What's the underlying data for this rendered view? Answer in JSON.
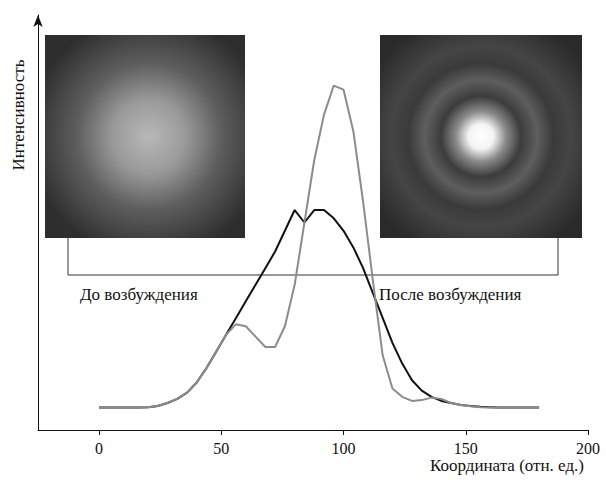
{
  "chart_data": {
    "type": "line",
    "xlabel": "Координата (отн. ед.)",
    "ylabel": "Интенсивность",
    "x": [
      0,
      4,
      8,
      12,
      16,
      20,
      24,
      28,
      32,
      36,
      40,
      44,
      48,
      52,
      56,
      60,
      64,
      68,
      72,
      76,
      80,
      84,
      88,
      92,
      96,
      100,
      104,
      108,
      112,
      116,
      120,
      124,
      128,
      132,
      136,
      140,
      144,
      148,
      152,
      156,
      160,
      164,
      168,
      172,
      176,
      180
    ],
    "series": [
      {
        "name": "До возбуждения",
        "color": "#111111",
        "line_style": "solid",
        "values": [
          5.4,
          5.4,
          5.4,
          5.4,
          5.4,
          5.5,
          5.8,
          6.5,
          7.5,
          9,
          11.5,
          15,
          19,
          23,
          27,
          31,
          35,
          39,
          43,
          48,
          53,
          50,
          53,
          53,
          51,
          48,
          44,
          39,
          33,
          27,
          21,
          16,
          12,
          9.5,
          8,
          7,
          6.5,
          6,
          5.8,
          5.6,
          5.5,
          5.4,
          5.4,
          5.4,
          5.4,
          5.4
        ]
      },
      {
        "name": "После возбуждения",
        "color": "#8c8c8c",
        "line_style": "solid",
        "values": [
          5.4,
          5.4,
          5.4,
          5.4,
          5.4,
          5.5,
          5.8,
          6.5,
          7.5,
          9,
          11.5,
          15,
          19,
          23,
          25.5,
          25,
          22.5,
          20,
          20,
          25,
          35,
          50,
          65,
          76,
          83,
          82,
          72,
          55,
          36,
          18,
          10,
          8,
          7,
          7.2,
          7.8,
          7.5,
          6.5,
          6,
          5.7,
          5.5,
          5.4,
          5.4,
          5.4,
          5.4,
          5.4,
          5.4
        ]
      }
    ],
    "xlim": [
      -25,
      200
    ],
    "xticks": [
      0,
      50,
      100,
      150,
      200
    ],
    "ylim": [
      0,
      100
    ],
    "yticks": [],
    "tick_labels": "x",
    "grid": false
  }
}
